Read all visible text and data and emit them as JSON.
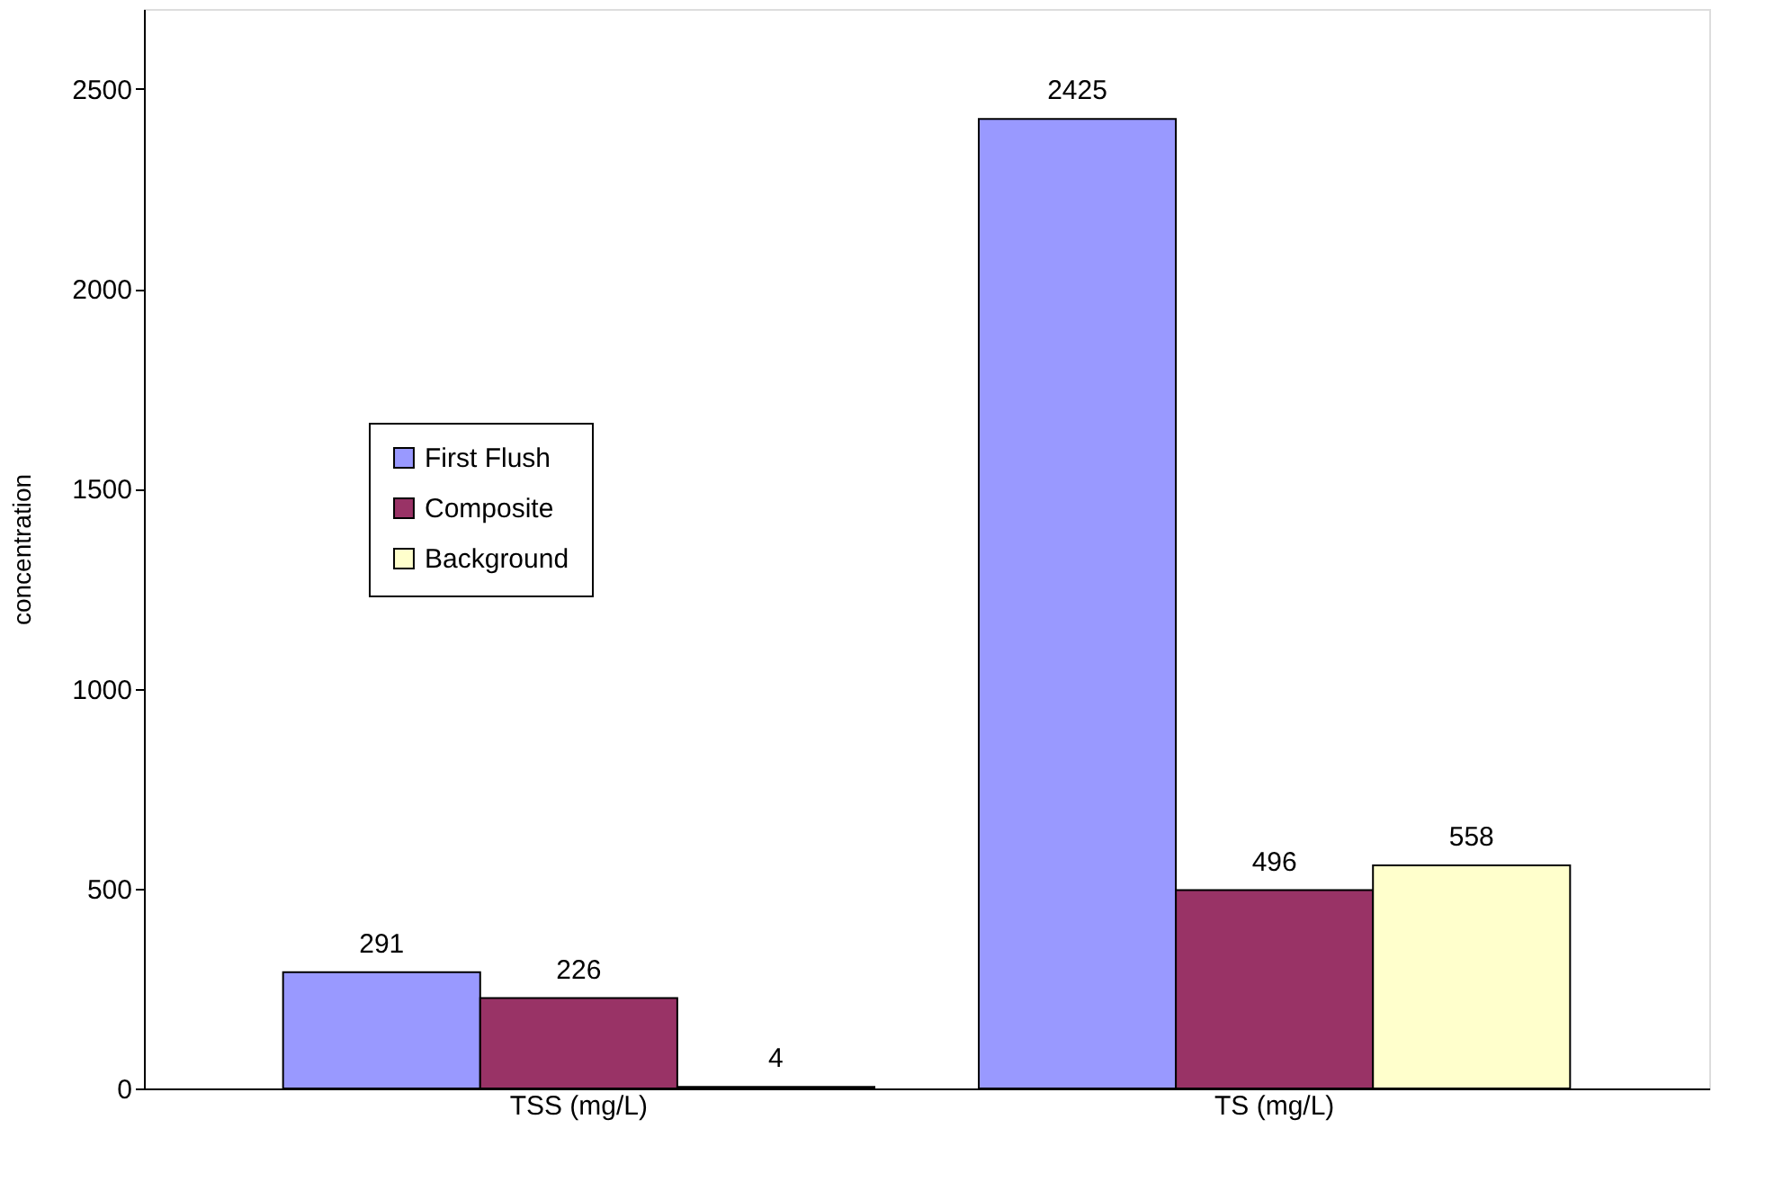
{
  "chart_data": {
    "type": "bar",
    "ylabel": "concentration",
    "categories": [
      "TSS (mg/L)",
      "TS (mg/L)"
    ],
    "series": [
      {
        "name": "First Flush",
        "color": "#9999ff",
        "values": [
          291,
          2425
        ]
      },
      {
        "name": "Composite",
        "color": "#993366",
        "values": [
          226,
          496
        ]
      },
      {
        "name": "Background",
        "color": "#ffffcc",
        "values": [
          4,
          558
        ]
      }
    ],
    "ylim": [
      0,
      2700
    ],
    "yticks": [
      0,
      500,
      1000,
      1500,
      2000,
      2500
    ],
    "grid": false,
    "legend": "left",
    "data_labels": true
  }
}
